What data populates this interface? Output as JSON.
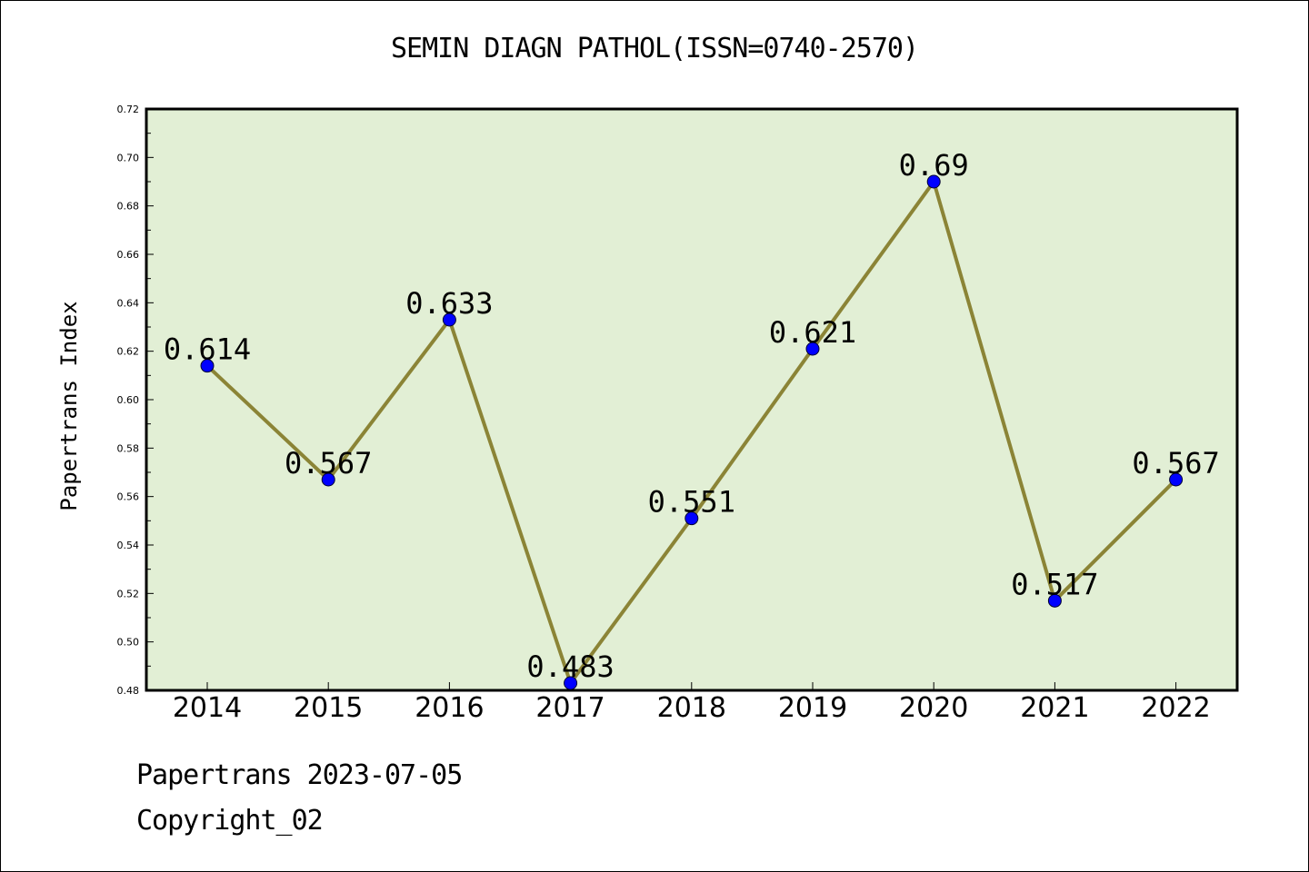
{
  "chart_data": {
    "type": "line",
    "title": "SEMIN DIAGN PATHOL(ISSN=0740-2570)",
    "xlabel": "",
    "ylabel": "Papertrans Index",
    "categories": [
      "2014",
      "2015",
      "2016",
      "2017",
      "2018",
      "2019",
      "2020",
      "2021",
      "2022"
    ],
    "series": [
      {
        "values": [
          0.614,
          0.567,
          0.633,
          0.483,
          0.551,
          0.621,
          0.69,
          0.517,
          0.567
        ],
        "data_labels": [
          "0.614",
          "0.567",
          "0.633",
          "0.483",
          "0.551",
          "0.621",
          "0.69",
          "0.517",
          "0.567"
        ]
      }
    ],
    "ylim": [
      0.48,
      0.72
    ],
    "yticks": [
      "0.48",
      "0.50",
      "0.52",
      "0.54",
      "0.56",
      "0.58",
      "0.60",
      "0.62",
      "0.64",
      "0.66",
      "0.68",
      "0.70",
      "0.72"
    ],
    "grid": false,
    "legend": "none",
    "colors": {
      "plot_background": "#e2efd5",
      "line": "#8b8436",
      "marker": "#0000ff"
    }
  },
  "footer": {
    "date": "Papertrans 2023-07-05",
    "copyright": "Copyright_02"
  }
}
